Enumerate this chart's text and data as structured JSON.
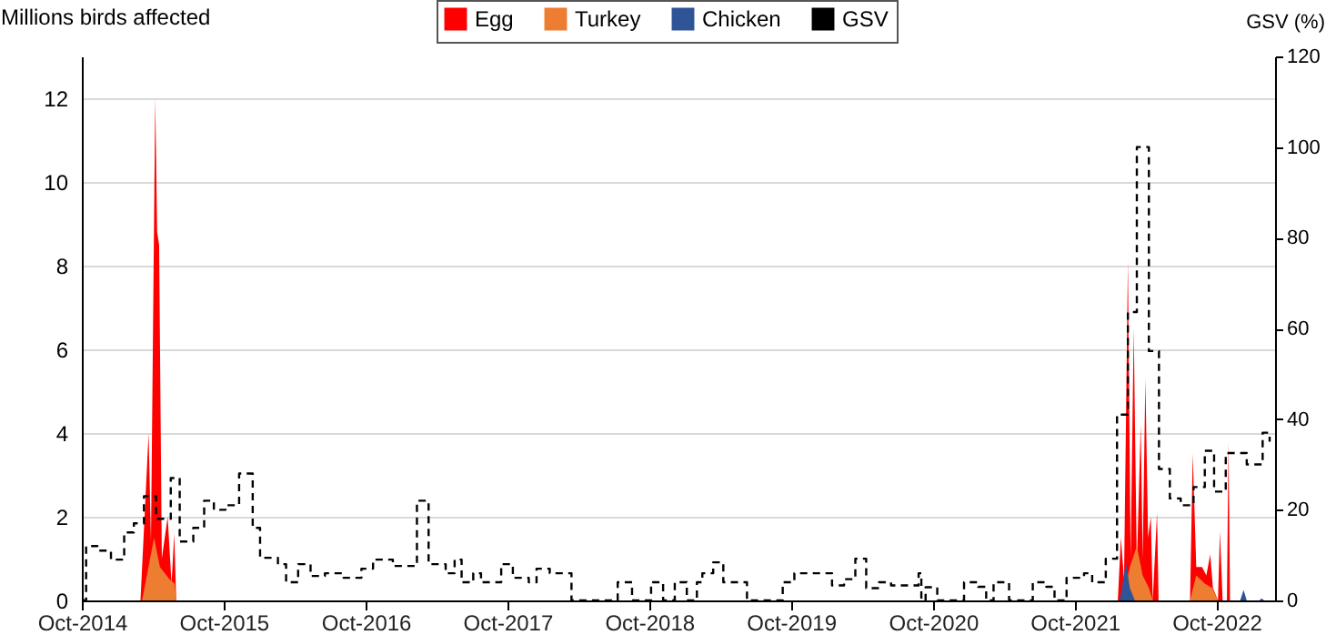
{
  "chart_data": {
    "type": "area",
    "ylabel": "Millions birds affected",
    "y2label": "GSV (%)",
    "xlim": [
      "2014-10-01",
      "2023-03-01"
    ],
    "xticks": [
      {
        "value": "2014-10",
        "label": "Oct-2014"
      },
      {
        "value": "2015-10",
        "label": "Oct-2015"
      },
      {
        "value": "2016-10",
        "label": "Oct-2016"
      },
      {
        "value": "2017-10",
        "label": "Oct-2017"
      },
      {
        "value": "2018-10",
        "label": "Oct-2018"
      },
      {
        "value": "2019-10",
        "label": "Oct-2019"
      },
      {
        "value": "2020-10",
        "label": "Oct-2020"
      },
      {
        "value": "2021-10",
        "label": "Oct-2021"
      },
      {
        "value": "2022-10",
        "label": "Oct-2022"
      }
    ],
    "ylim": [
      0,
      13
    ],
    "yticks": [
      0,
      2,
      4,
      6,
      8,
      10,
      12
    ],
    "y2lim": [
      0,
      120
    ],
    "y2ticks": [
      0,
      20,
      40,
      60,
      80,
      100,
      120
    ],
    "grid": "y",
    "legend": "top",
    "series": [
      {
        "name": "Egg",
        "color": "#ff0000",
        "x": [
          "2015-03-01",
          "2015-03-22",
          "2015-03-28",
          "2015-04-08",
          "2015-04-13",
          "2015-04-18",
          "2015-04-25",
          "2015-05-10",
          "2015-05-20",
          "2015-05-27",
          "2015-06-01",
          "2022-01-20",
          "2022-01-28",
          "2022-02-05",
          "2022-02-15",
          "2022-02-22",
          "2022-03-02",
          "2022-03-10",
          "2022-03-20",
          "2022-03-25",
          "2022-04-01",
          "2022-04-08",
          "2022-04-15",
          "2022-04-20",
          "2022-05-01",
          "2022-05-05",
          "2022-07-25",
          "2022-08-01",
          "2022-08-10",
          "2022-08-25",
          "2022-09-05",
          "2022-09-15",
          "2022-09-22",
          "2022-10-05",
          "2022-10-10",
          "2022-10-17",
          "2022-10-28",
          "2022-11-01",
          "2022-11-05"
        ],
        "values": [
          0,
          4.0,
          1.4,
          12.0,
          8.8,
          8.5,
          1.0,
          2.0,
          0.4,
          1.6,
          0,
          0,
          1.5,
          0.5,
          8.1,
          1.0,
          6.5,
          0.8,
          4.2,
          1.0,
          5.3,
          1.5,
          2.0,
          0,
          2.1,
          0,
          0,
          3.5,
          0.8,
          0.8,
          0.6,
          1.1,
          0.3,
          0,
          1.65,
          0,
          0,
          3.8,
          0
        ]
      },
      {
        "name": "Turkey",
        "color": "#ed7d31",
        "x": [
          "2015-03-05",
          "2015-04-05",
          "2015-04-20",
          "2015-05-15",
          "2015-05-28",
          "2015-06-01",
          "2022-02-01",
          "2022-02-20",
          "2022-03-10",
          "2022-03-25",
          "2022-04-10",
          "2022-04-20",
          "2022-07-25",
          "2022-08-10",
          "2022-09-01",
          "2022-09-20",
          "2022-10-05"
        ],
        "values": [
          0,
          1.5,
          0.8,
          0.5,
          0.4,
          0,
          0,
          0.8,
          1.3,
          0.6,
          0.3,
          0,
          0,
          0.6,
          0.4,
          0.3,
          0
        ]
      },
      {
        "name": "Chicken",
        "color": "#2f5597",
        "x": [
          "2022-01-25",
          "2022-02-10",
          "2022-02-20",
          "2022-03-05",
          "2022-12-01",
          "2022-12-10",
          "2022-12-18",
          "2023-01-20",
          "2023-01-25",
          "2023-02-01"
        ],
        "values": [
          0,
          0.9,
          0.3,
          0,
          0,
          0.25,
          0,
          0,
          0.05,
          0
        ]
      },
      {
        "name": "GSV",
        "type": "step",
        "axis": "y2",
        "color": "#000000",
        "line_style": "dashed",
        "x": [
          "2014-10-01",
          "2014-10-12",
          "2014-11-10",
          "2014-12-15",
          "2015-01-18",
          "2015-02-12",
          "2015-03-10",
          "2015-04-10",
          "2015-05-18",
          "2015-06-10",
          "2015-07-15",
          "2015-08-12",
          "2015-09-06",
          "2015-10-06",
          "2015-11-10",
          "2015-12-15",
          "2016-01-03",
          "2016-02-18",
          "2016-03-10",
          "2016-04-10",
          "2016-05-12",
          "2016-06-18",
          "2016-08-05",
          "2016-09-20",
          "2016-10-20",
          "2016-12-10",
          "2017-02-10",
          "2017-03-12",
          "2017-04-25",
          "2017-05-18",
          "2017-06-05",
          "2017-07-05",
          "2017-07-25",
          "2017-09-15",
          "2017-10-15",
          "2017-11-25",
          "2017-12-15",
          "2018-01-18",
          "2018-03-15",
          "2018-07-12",
          "2018-08-18",
          "2018-10-06",
          "2018-11-06",
          "2018-12-06",
          "2019-01-06",
          "2019-02-01",
          "2019-02-15",
          "2019-03-15",
          "2019-04-10",
          "2019-06-10",
          "2019-09-10",
          "2019-10-10",
          "2019-11-12",
          "2020-01-15",
          "2020-02-15",
          "2020-03-15",
          "2020-04-12",
          "2020-05-15",
          "2020-06-15",
          "2020-08-25",
          "2020-09-01",
          "2020-09-12",
          "2020-10-12",
          "2020-12-20",
          "2021-01-25",
          "2021-02-15",
          "2021-03-06",
          "2021-04-15",
          "2021-06-15",
          "2021-07-20",
          "2021-08-10",
          "2021-09-10",
          "2021-10-25",
          "2021-11-15",
          "2021-12-20",
          "2022-01-18",
          "2022-02-15",
          "2022-03-10",
          "2022-04-10",
          "2022-05-06",
          "2022-06-03",
          "2022-07-01",
          "2022-08-03",
          "2022-09-01",
          "2022-09-25",
          "2022-10-25",
          "2022-12-18",
          "2023-01-28",
          "2023-02-15"
        ],
        "values": [
          0,
          12,
          11,
          9,
          15,
          17,
          23,
          18,
          27,
          13,
          16,
          22,
          20,
          21,
          28,
          16,
          9.4,
          8,
          4,
          8,
          5.4,
          6,
          5,
          7,
          9,
          7.6,
          22,
          8,
          6,
          9,
          4,
          6,
          4,
          8,
          5,
          4,
          7,
          6,
          0,
          4,
          0,
          4,
          0,
          4,
          0,
          4,
          6,
          8.4,
          4,
          0,
          4,
          6,
          6,
          3.3,
          4.7,
          9.2,
          2.7,
          4,
          3.3,
          6,
          0,
          2.9,
          0,
          4,
          3,
          0,
          4,
          0,
          4,
          3,
          0,
          5,
          6,
          4,
          9.2,
          41,
          63.6,
          100,
          55,
          29,
          22.5,
          21,
          25,
          33,
          24,
          32.5,
          30,
          37,
          35
        ]
      }
    ]
  }
}
